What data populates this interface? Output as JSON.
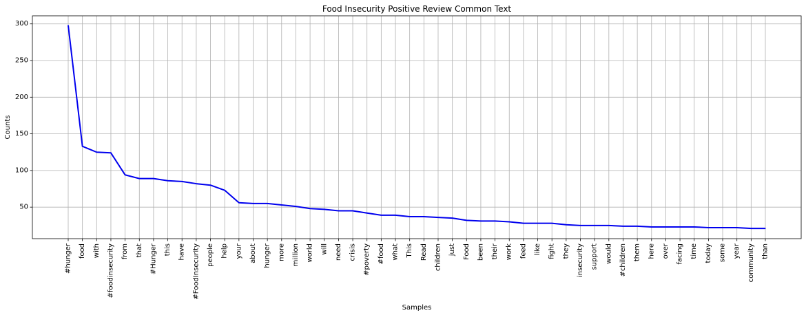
{
  "chart_data": {
    "type": "line",
    "title": "Food Insecurity Positive Review Common Text",
    "xlabel": "Samples",
    "ylabel": "Counts",
    "ylim": [
      7,
      311
    ],
    "yticks": [
      50,
      100,
      150,
      200,
      250,
      300
    ],
    "grid": true,
    "line_color": "#0000ee",
    "categories": [
      "#hunger",
      "food",
      "with",
      "#foodinsecurity",
      "from",
      "that",
      "#Hunger",
      "this",
      "have",
      "#FoodInsecurity",
      "people",
      "help",
      "your",
      "about",
      "hunger",
      "more",
      "million",
      "world",
      "will",
      "need",
      "crisis",
      "#poverty",
      "#food",
      "what",
      "This",
      "Read",
      "children",
      "just",
      "Food",
      "been",
      "their",
      "work",
      "feed",
      "like",
      "fight",
      "they",
      "insecurity",
      "support",
      "would",
      "#children",
      "them",
      "here",
      "over",
      "facing",
      "time",
      "today",
      "some",
      "year",
      "community",
      "than"
    ],
    "values": [
      298,
      133,
      125,
      124,
      94,
      89,
      89,
      86,
      85,
      82,
      80,
      73,
      56,
      55,
      55,
      53,
      51,
      48,
      47,
      45,
      45,
      42,
      39,
      39,
      37,
      37,
      36,
      35,
      32,
      31,
      31,
      30,
      28,
      28,
      28,
      26,
      25,
      25,
      25,
      24,
      24,
      23,
      23,
      23,
      23,
      22,
      22,
      22,
      21,
      21
    ]
  }
}
